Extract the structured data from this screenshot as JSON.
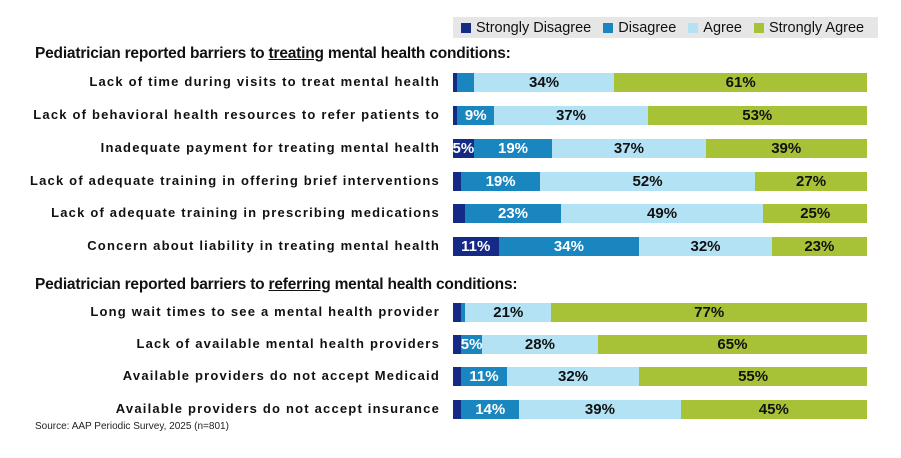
{
  "chart_data": {
    "type": "bar",
    "orientation": "horizontal",
    "stacked": true,
    "title": "",
    "xlabel": "",
    "ylabel": "",
    "xlim": [
      0,
      100
    ],
    "legend": {
      "placement": "top-right",
      "entries": [
        "Strongly Disagree",
        "Disagree",
        "Agree",
        "Strongly Agree"
      ]
    },
    "colors": {
      "Strongly Disagree": "#142a86",
      "Disagree": "#1a86c0",
      "Agree": "#b3e2f5",
      "Strongly Agree": "#a7c236"
    },
    "groups": [
      {
        "title_prefix": "Pediatrician reported barriers to ",
        "title_emphasis": "treating",
        "title_suffix": " mental health conditions:",
        "categories": [
          "Lack of time during visits to treat mental health",
          "Lack of behavioral health resources to refer patients to",
          "Inadequate payment for treating mental health",
          "Lack of adequate training in offering brief interventions",
          "Lack of adequate training in prescribing medications",
          "Concern about liability in treating mental health"
        ],
        "series": [
          {
            "name": "Strongly Disagree",
            "values": [
              1,
              1,
              5,
              2,
              3,
              11
            ],
            "labeled": [
              false,
              false,
              true,
              false,
              false,
              true
            ]
          },
          {
            "name": "Disagree",
            "values": [
              4,
              9,
              19,
              19,
              23,
              34
            ],
            "labeled": [
              false,
              true,
              true,
              true,
              true,
              true
            ]
          },
          {
            "name": "Agree",
            "values": [
              34,
              37,
              37,
              52,
              49,
              32
            ],
            "labeled": [
              true,
              true,
              true,
              true,
              true,
              true
            ]
          },
          {
            "name": "Strongly Agree",
            "values": [
              61,
              53,
              39,
              27,
              25,
              23
            ],
            "labeled": [
              true,
              true,
              true,
              true,
              true,
              true
            ]
          }
        ]
      },
      {
        "title_prefix": "Pediatrician reported barriers to ",
        "title_emphasis": "referring",
        "title_suffix": " mental health conditions:",
        "categories": [
          "Long wait times to see a mental health provider",
          "Lack of available mental health providers",
          "Available providers do not accept Medicaid",
          "Available providers do not accept insurance"
        ],
        "series": [
          {
            "name": "Strongly Disagree",
            "values": [
              2,
              2,
              2,
              2
            ],
            "labeled": [
              false,
              false,
              false,
              false
            ]
          },
          {
            "name": "Disagree",
            "values": [
              1,
              5,
              11,
              14
            ],
            "labeled": [
              false,
              true,
              true,
              true
            ]
          },
          {
            "name": "Agree",
            "values": [
              21,
              28,
              32,
              39
            ],
            "labeled": [
              true,
              true,
              true,
              true
            ]
          },
          {
            "name": "Strongly Agree",
            "values": [
              77,
              65,
              55,
              45
            ],
            "labeled": [
              true,
              true,
              true,
              true
            ]
          }
        ]
      }
    ],
    "source": "Source: AAP Periodic Survey, 2025  (n=801)"
  }
}
